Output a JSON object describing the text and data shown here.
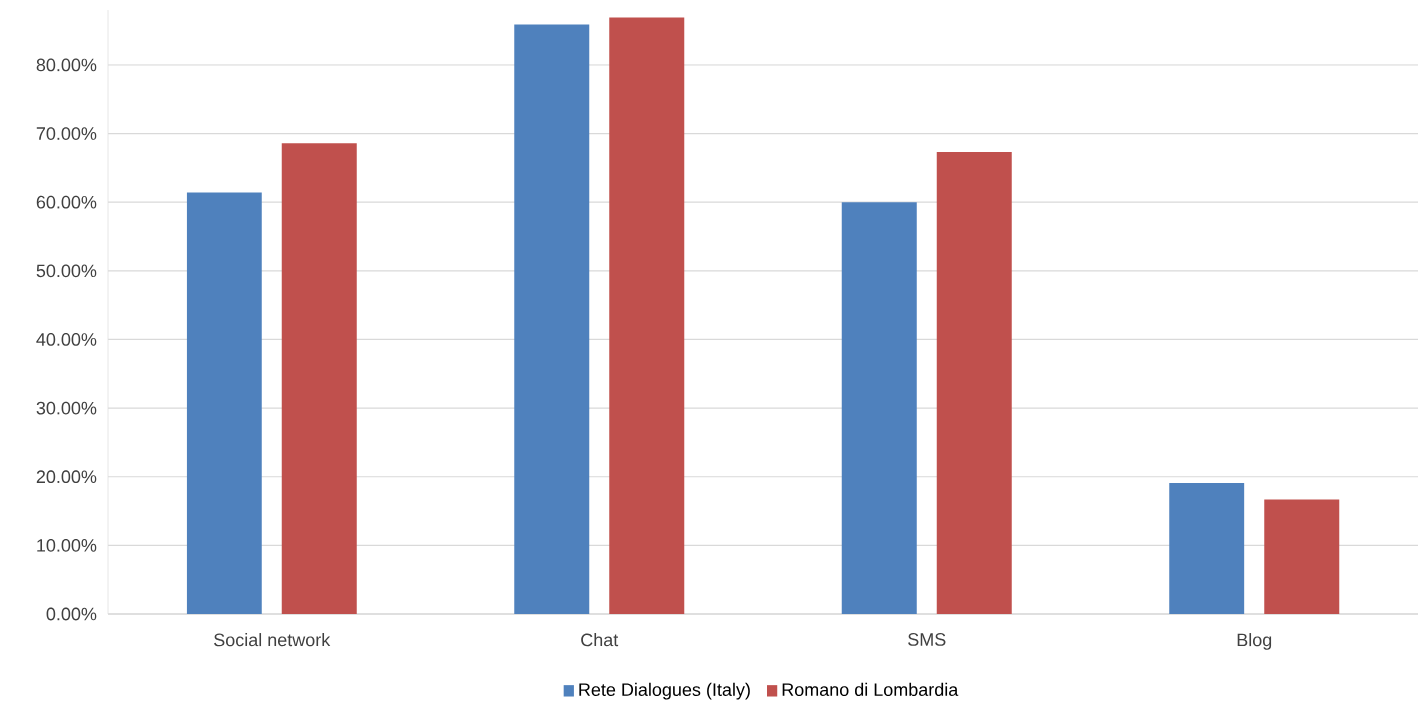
{
  "chart_data": {
    "type": "bar",
    "categories": [
      "Social network",
      "Chat",
      "SMS",
      "Blog"
    ],
    "series": [
      {
        "name": "Rete Dialogues (Italy)",
        "color": "#4f81bd",
        "values": [
          61.4,
          85.9,
          60.0,
          19.1
        ]
      },
      {
        "name": "Romano di Lombardia",
        "color": "#c0504d",
        "values": [
          68.6,
          86.9,
          67.3,
          16.7
        ]
      }
    ],
    "yticks": [
      {
        "value": 0,
        "label": "0.00%"
      },
      {
        "value": 10,
        "label": "10.00%"
      },
      {
        "value": 20,
        "label": "20.00%"
      },
      {
        "value": 30,
        "label": "30.00%"
      },
      {
        "value": 40,
        "label": "40.00%"
      },
      {
        "value": 50,
        "label": "50.00%"
      },
      {
        "value": 60,
        "label": "60.00%"
      },
      {
        "value": 70,
        "label": "70.00%"
      },
      {
        "value": 80,
        "label": "80.00%"
      }
    ],
    "ylim": [
      0,
      88
    ],
    "grid": "y",
    "legend": "bottom"
  }
}
